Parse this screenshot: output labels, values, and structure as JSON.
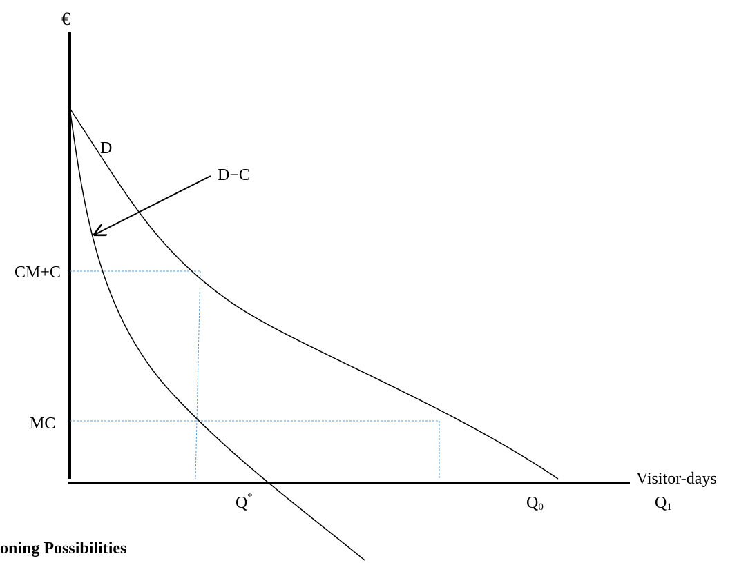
{
  "axes": {
    "y_label": "€",
    "x_label": "Visitor-days"
  },
  "curves": {
    "demand": "D",
    "demand_minus_c": "D−C"
  },
  "price_levels": {
    "upper": "CM+C",
    "lower": "MC"
  },
  "quantities": {
    "q_star_base": "Q",
    "q_star_sup": "*",
    "q0_base": "Q",
    "q0_sub": "0",
    "q1_base": "Q",
    "q1_sub": "1"
  },
  "caption": "oning Possibilities",
  "colors": {
    "lines": "#000000",
    "guides": "#5b9bd5"
  }
}
